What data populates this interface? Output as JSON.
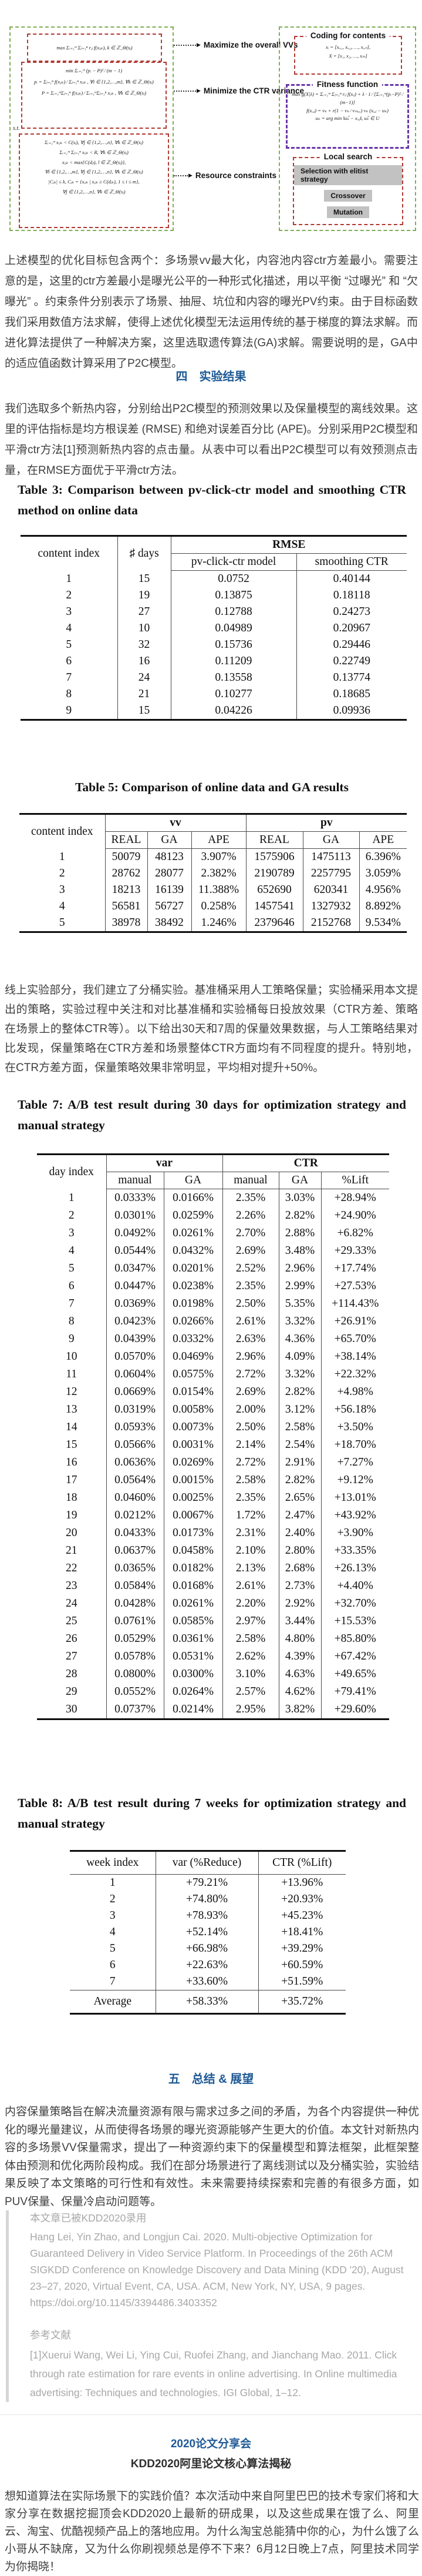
{
  "diagram": {
    "labels": {
      "maximize": "Maximize the overall VVs",
      "minimize": "Minimize the CTR variance",
      "resource": "Resource constraints"
    },
    "left": {
      "obj1": "max Σᵢ₌₁ᵐ Σⱼ₌₁ⁿ rᵢⱼ f(xᵢⱼₖ), k ∈ ℤ_Θ(sⱼ)",
      "obj2": [
        "min  Σᵢ₌₁ᵐ (pᵢ − P)² ⁄ (m − 1)",
        "pᵢ = Σⱼ₌₁ⁿ f(xᵢⱼₖ) ⁄ Σⱼ₌₁ⁿ xᵢⱼₖ , ∀i ∈ {1,2,…,m}, ∀k ∈ ℤ_Θ(sⱼ)",
        "P = Σᵢ₌₁ᵐΣⱼ₌₁ⁿ f(xᵢⱼₖ) ⁄ Σᵢ₌₁ᵐΣⱼ₌₁ⁿ xᵢⱼₖ , ∀k ∈ ℤ_Θ(sⱼ)"
      ],
      "st": "s.t.",
      "constraints": [
        "Σᵢ₌₁ᵐ xᵢⱼₖ < C(sⱼ), ∀j ∈ {1,2,…,n}, ∀k ∈ ℤ_Θ(sⱼ)",
        "Σᵢ₌₁ᵐ Σⱼ₌₁ⁿ xᵢⱼₖ < R, ∀k ∈ ℤ_Θ(sⱼ)",
        "xᵢⱼₖ < max{C(dⱼₗ), l ∈ ℤ_Θ(sⱼ)},",
        "∀i ∈ {1,2,…,m}, ∀j ∈ {1,2,…,n}, ∀k ∈ ℤ_Θ(sⱼ)",
        "|Cⱼₖ| ≤ k, Cⱼₖ = {xᵢⱼₖ | xᵢⱼₖ ≥ C(dⱼₖ), 1 ≤ i ≤ m},",
        "∀j ∈ {1,2,…,n}, ∀k ∈ ℤ_Θ(sⱼ)"
      ]
    },
    "right": {
      "coding_title": "Coding for contents",
      "coding": [
        "xᵢ = [xᵢ,₁, xᵢ,₂, …, xᵢ,ₙ],",
        "X = [x₁, x₂, …, xₘ]"
      ],
      "fitness_title": "Fitness function",
      "fitness": [
        "max g(X|λ) = Σᵢ₌₁ᵐ Σⱼ₌₁ⁿ rᵢⱼ f(xᵢⱼ) + λ · 1 ⁄ [Σᵢ₌₁ᵐ(pᵢ−P)² ⁄ (m−1)]",
        "f(xᵢ,ⱼ) = vₖ + r(1 − vₖ ⁄ vₘₐₓ) vₖ (xᵢ,ⱼ − uₖ)",
        "uₖ = arg min ‖uₖ̃ − xᵢ,ⱼ‖, uₖ̃ ∈ U"
      ],
      "local_title": "Local search",
      "buttons": [
        "Selection with elitist strategy",
        "Crossover",
        "Mutation"
      ]
    }
  },
  "para1": "上述模型的优化目标包含两个：多场景vv最大化，内容池内容ctr方差最小。需要注意的是，这里的ctr方差最小是曝光公平的一种形式化描述，用以平衡 “过曝光” 和 “欠曝光” 。约束条件分别表示了场景、抽屉、坑位和内容的曝光PV约束。由于目标函数我们采用数值方法求解，使得上述优化模型无法运用传统的基于梯度的算法求解。而进化算法提供了一种解决方案，这里选取遗传算法(GA)求解。需要说明的是，GA中的适应值函数计算采用了P2C模型。",
  "sec4_title": "四　实验结果",
  "para2": "我们选取多个新热内容，分别给出P2C模型的预测效果以及保量模型的离线效果。这里的评估指标是均方根误差 (RMSE) 和绝对误差百分比 (APE)。分别采用P2C模型和平滑ctr方法[1]预测新热内容的点击量。从表中可以看出P2C模型可以有效预测点击量，在RMSE方面优于平滑ctr方法。",
  "table3": {
    "title": "Table 3: Comparison between pv-click-ctr model and smoothing CTR method on online data",
    "col_content_index": "content index",
    "col_days": "♯ days",
    "col_rmse": "RMSE",
    "col_model": "pv-click-ctr model",
    "col_smoothing": "smoothing CTR",
    "rows": [
      [
        "1",
        "15",
        "0.0752",
        "0.40144"
      ],
      [
        "2",
        "19",
        "0.13875",
        "0.18118"
      ],
      [
        "3",
        "27",
        "0.12788",
        "0.24273"
      ],
      [
        "4",
        "10",
        "0.04989",
        "0.20967"
      ],
      [
        "5",
        "32",
        "0.15736",
        "0.29446"
      ],
      [
        "6",
        "16",
        "0.11209",
        "0.22749"
      ],
      [
        "7",
        "24",
        "0.13558",
        "0.13774"
      ],
      [
        "8",
        "21",
        "0.10277",
        "0.18685"
      ],
      [
        "9",
        "15",
        "0.04226",
        "0.09936"
      ]
    ]
  },
  "table5": {
    "title": "Table 5: Comparison of online data and GA results",
    "col_content_index": "content index",
    "col_vv": "vv",
    "col_pv": "pv",
    "sub_real": "REAL",
    "sub_ga": "GA",
    "sub_ape": "APE",
    "rows": [
      [
        "1",
        "50079",
        "48123",
        "3.907%",
        "1575906",
        "1475113",
        "6.396%"
      ],
      [
        "2",
        "28762",
        "28077",
        "2.382%",
        "2190789",
        "2257795",
        "3.059%"
      ],
      [
        "3",
        "18213",
        "16139",
        "11.388%",
        "652690",
        "620341",
        "4.956%"
      ],
      [
        "4",
        "56581",
        "56727",
        "0.258%",
        "1457541",
        "1327932",
        "8.892%"
      ],
      [
        "5",
        "38978",
        "38492",
        "1.246%",
        "2379646",
        "2152768",
        "9.534%"
      ]
    ]
  },
  "para3": "线上实验部分，我们建立了分桶实验。基准桶采用人工策略保量；实验桶采用本文提出的策略，实验过程中关注和对比基准桶和实验桶每日投放效果（CTR方差、策略在场景上的整体CTR等）。以下给出30天和7周的保量效果数据，与人工策略结果对比发现，保量策略在CTR方差和场景整体CTR方面均有不同程度的提升。特别地，在CTR方差方面，保量策略效果非常明显，平均相对提升+50%。",
  "table7": {
    "title": "Table 7: A/B test result during 30 days for optimization strategy and manual strategy",
    "col_day_index": "day index",
    "col_var": "var",
    "col_ctr": "CTR",
    "sub_manual": "manual",
    "sub_ga": "GA",
    "sub_lift": "%Lift",
    "rows": [
      [
        "1",
        "0.0333%",
        "0.0166%",
        "2.35%",
        "3.03%",
        "+28.94%"
      ],
      [
        "2",
        "0.0301%",
        "0.0259%",
        "2.26%",
        "2.82%",
        "+24.90%"
      ],
      [
        "3",
        "0.0492%",
        "0.0261%",
        "2.70%",
        "2.88%",
        "+6.82%"
      ],
      [
        "4",
        "0.0544%",
        "0.0432%",
        "2.69%",
        "3.48%",
        "+29.33%"
      ],
      [
        "5",
        "0.0347%",
        "0.0201%",
        "2.52%",
        "2.96%",
        "+17.74%"
      ],
      [
        "6",
        "0.0447%",
        "0.0238%",
        "2.35%",
        "2.99%",
        "+27.53%"
      ],
      [
        "7",
        "0.0369%",
        "0.0198%",
        "2.50%",
        "5.35%",
        "+114.43%"
      ],
      [
        "8",
        "0.0423%",
        "0.0266%",
        "2.61%",
        "3.32%",
        "+26.91%"
      ],
      [
        "9",
        "0.0439%",
        "0.0332%",
        "2.63%",
        "4.36%",
        "+65.70%"
      ],
      [
        "10",
        "0.0570%",
        "0.0469%",
        "2.96%",
        "4.09%",
        "+38.14%"
      ],
      [
        "11",
        "0.0604%",
        "0.0575%",
        "2.72%",
        "3.32%",
        "+22.32%"
      ],
      [
        "12",
        "0.0669%",
        "0.0154%",
        "2.69%",
        "2.82%",
        "+4.98%"
      ],
      [
        "13",
        "0.0319%",
        "0.0058%",
        "2.00%",
        "3.12%",
        "+56.18%"
      ],
      [
        "14",
        "0.0593%",
        "0.0073%",
        "2.50%",
        "2.58%",
        "+3.50%"
      ],
      [
        "15",
        "0.0566%",
        "0.0031%",
        "2.14%",
        "2.54%",
        "+18.70%"
      ],
      [
        "16",
        "0.0636%",
        "0.0269%",
        "2.72%",
        "2.91%",
        "+7.27%"
      ],
      [
        "17",
        "0.0564%",
        "0.0015%",
        "2.58%",
        "2.82%",
        "+9.12%"
      ],
      [
        "18",
        "0.0460%",
        "0.0025%",
        "2.35%",
        "2.65%",
        "+13.01%"
      ],
      [
        "19",
        "0.0212%",
        "0.0067%",
        "1.72%",
        "2.47%",
        "+43.92%"
      ],
      [
        "20",
        "0.0433%",
        "0.0173%",
        "2.31%",
        "2.40%",
        "+3.90%"
      ],
      [
        "21",
        "0.0637%",
        "0.0458%",
        "2.10%",
        "2.80%",
        "+33.35%"
      ],
      [
        "22",
        "0.0365%",
        "0.0182%",
        "2.13%",
        "2.68%",
        "+26.13%"
      ],
      [
        "23",
        "0.0584%",
        "0.0168%",
        "2.61%",
        "2.73%",
        "+4.40%"
      ],
      [
        "24",
        "0.0428%",
        "0.0261%",
        "2.20%",
        "2.92%",
        "+32.70%"
      ],
      [
        "25",
        "0.0761%",
        "0.0585%",
        "2.97%",
        "3.44%",
        "+15.53%"
      ],
      [
        "26",
        "0.0529%",
        "0.0361%",
        "2.58%",
        "4.80%",
        "+85.80%"
      ],
      [
        "27",
        "0.0578%",
        "0.0531%",
        "2.62%",
        "4.39%",
        "+67.42%"
      ],
      [
        "28",
        "0.0800%",
        "0.0300%",
        "3.10%",
        "4.63%",
        "+49.65%"
      ],
      [
        "29",
        "0.0552%",
        "0.0264%",
        "2.57%",
        "4.62%",
        "+79.41%"
      ],
      [
        "30",
        "0.0737%",
        "0.0214%",
        "2.95%",
        "3.82%",
        "+29.60%"
      ]
    ]
  },
  "table8": {
    "title": "Table 8: A/B test result during 7 weeks for optimization strategy and manual strategy",
    "col_week_index": "week index",
    "col_var": "var (%Reduce)",
    "col_ctr": "CTR (%Lift)",
    "rows": [
      [
        "1",
        "+79.21%",
        "+13.96%"
      ],
      [
        "2",
        "+74.80%",
        "+20.93%"
      ],
      [
        "3",
        "+78.93%",
        "+45.23%"
      ],
      [
        "4",
        "+52.14%",
        "+18.41%"
      ],
      [
        "5",
        "+66.98%",
        "+39.29%"
      ],
      [
        "6",
        "+22.63%",
        "+60.59%"
      ],
      [
        "7",
        "+33.60%",
        "+51.59%"
      ]
    ],
    "average_label": "Average",
    "average_var": "+58.33%",
    "average_ctr": "+35.72%"
  },
  "sec5_title": "五　总结 & 展望",
  "para4": "内容保量策略旨在解决流量资源有限与需求过多之间的矛盾，为各个内容提供一种优化的曝光量建议，从而使得各场景的曝光资源能够产生更大的价值。本文针对新热内容的多场景VV保量需求，提出了一种资源约束下的保量模型和算法框架，此框架整体由预测和优化两阶段构成。我们在部分场景进行了离线测试以及分桶实验，实验结果反映了本文策略的可行性和有效性。未来需要持续探索和完善的有很多方面，如PUV保量、保量冷启动问题等。",
  "quote": {
    "accepted_note": "本文章已被KDD2020录用",
    "citation": "Hang Lei, Yin Zhao, and Longjun Cai. 2020. Multi-objective Optimization for Guaranteed Delivery in Video Service Platform. In Proceedings of the 26th ACM SIGKDD Conference on Knowledge Discovery and Data Mining (KDD '20), August 23–27, 2020, Virtual Event, CA, USA. ACM, New York, NY, USA, 9 pages. https://doi.org/10.1145/3394486.3403352",
    "ref_header": "参考文献",
    "ref1": "[1]Xuerui Wang, Wei Li, Ying Cui, Ruofei Zhang, and Jianchang Mao. 2011. Click through rate estimation for rare events in online advertising. In Online multimedia advertising: Techniques and technologies. IGI Global, 1–12."
  },
  "footer": {
    "event_title": "2020论文分享会",
    "event_subtitle": "KDD2020阿里论文核心算法揭秘",
    "para": "想知道算法在实际场景下的实践价值？本次活动中来自阿里巴巴的技术专家们将和大家分享在数据挖掘顶会KDD2020上最新的研成果，以及这些成果在饿了么、阿里云、淘宝、优酷视频产品上的落地应用。为什么淘宝总能猜中你的心，为什么饿了么小哥从不缺席，又为什么你刷视频总是停不下来？6月12日晚上7点，阿里技术同学为你揭晓！"
  },
  "colors": {
    "heading_blue": "#1e5a96",
    "quote_gray": "#a8a8a8",
    "green_dash": "#7fae53",
    "red_dash": "#b03a33",
    "purple_dash": "#6a35a8",
    "button_gray": "#c2c2c2"
  }
}
